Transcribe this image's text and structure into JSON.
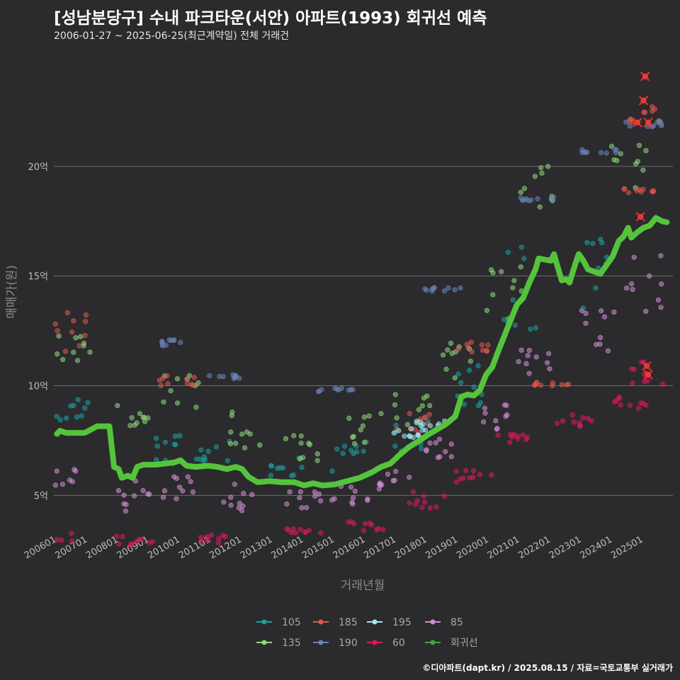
{
  "title": "[성남분당구] 수내 파크타운(서안) 아파트(1993) 회귀선 예측",
  "subtitle": "2006-01-27 ~ 2025-06-25(최근계약일) 전체 거래건",
  "caption": "©디아파트(dapt.kr) / 2025.08.15 / 자료=국토교통부 실거래가",
  "chart_data": {
    "type": "scatter",
    "xlabel": "거래년월",
    "ylabel": "매매가(원)",
    "x_ticks": [
      "200601",
      "200701",
      "200801",
      "200901",
      "201001",
      "201101",
      "201201",
      "201301",
      "201401",
      "201501",
      "201601",
      "201701",
      "201801",
      "201901",
      "202001",
      "202101",
      "202201",
      "202301",
      "202401",
      "202501"
    ],
    "y_ticks": [
      {
        "value": 5,
        "label": "5억"
      },
      {
        "value": 10,
        "label": "10억"
      },
      {
        "value": 15,
        "label": "15억"
      },
      {
        "value": 20,
        "label": "20억"
      }
    ],
    "x_range": [
      2005.9,
      2025.95
    ],
    "y_range": [
      3.3,
      25.0
    ],
    "grid": "horizontal",
    "legend_position": "bottom",
    "legend": [
      {
        "label": "105",
        "color": "#1aa0a0"
      },
      {
        "label": "185",
        "color": "#e2584a"
      },
      {
        "label": "195",
        "color": "#a8e8f4"
      },
      {
        "label": "85",
        "color": "#d48ed6"
      },
      {
        "label": "135",
        "color": "#8fd87a"
      },
      {
        "label": "190",
        "color": "#6a84b8"
      },
      {
        "label": "60",
        "color": "#e0185e"
      },
      {
        "label": "회귀선",
        "color": "#3aa83a"
      }
    ],
    "regression": {
      "name": "회귀선",
      "color": "#55c43c",
      "points": [
        [
          2006.0,
          7.8
        ],
        [
          2006.1,
          7.95
        ],
        [
          2006.3,
          7.85
        ],
        [
          2006.6,
          7.85
        ],
        [
          2006.9,
          7.85
        ],
        [
          2007.1,
          8.0
        ],
        [
          2007.3,
          8.15
        ],
        [
          2007.7,
          8.15
        ],
        [
          2007.85,
          6.3
        ],
        [
          2008.0,
          6.2
        ],
        [
          2008.1,
          5.8
        ],
        [
          2008.3,
          5.9
        ],
        [
          2008.45,
          5.8
        ],
        [
          2008.6,
          6.3
        ],
        [
          2008.8,
          6.4
        ],
        [
          2009.2,
          6.4
        ],
        [
          2009.5,
          6.45
        ],
        [
          2009.8,
          6.5
        ],
        [
          2010.0,
          6.6
        ],
        [
          2010.2,
          6.35
        ],
        [
          2010.5,
          6.3
        ],
        [
          2010.9,
          6.35
        ],
        [
          2011.2,
          6.3
        ],
        [
          2011.5,
          6.2
        ],
        [
          2011.8,
          6.3
        ],
        [
          2012.0,
          6.2
        ],
        [
          2012.2,
          5.85
        ],
        [
          2012.5,
          5.6
        ],
        [
          2012.9,
          5.65
        ],
        [
          2013.3,
          5.6
        ],
        [
          2013.7,
          5.6
        ],
        [
          2014.0,
          5.45
        ],
        [
          2014.3,
          5.55
        ],
        [
          2014.6,
          5.45
        ],
        [
          2015.0,
          5.5
        ],
        [
          2015.4,
          5.65
        ],
        [
          2015.8,
          5.8
        ],
        [
          2016.2,
          6.05
        ],
        [
          2016.5,
          6.3
        ],
        [
          2016.8,
          6.45
        ],
        [
          2017.1,
          6.85
        ],
        [
          2017.4,
          7.2
        ],
        [
          2017.8,
          7.55
        ],
        [
          2018.0,
          7.75
        ],
        [
          2018.3,
          8.0
        ],
        [
          2018.6,
          8.25
        ],
        [
          2018.9,
          8.6
        ],
        [
          2019.1,
          9.5
        ],
        [
          2019.3,
          9.6
        ],
        [
          2019.5,
          9.55
        ],
        [
          2019.7,
          9.8
        ],
        [
          2019.9,
          10.5
        ],
        [
          2020.1,
          10.85
        ],
        [
          2020.3,
          11.6
        ],
        [
          2020.5,
          12.3
        ],
        [
          2020.7,
          13.0
        ],
        [
          2020.9,
          13.7
        ],
        [
          2021.1,
          14.0
        ],
        [
          2021.3,
          14.7
        ],
        [
          2021.5,
          15.3
        ],
        [
          2021.6,
          15.8
        ],
        [
          2021.8,
          15.75
        ],
        [
          2022.0,
          15.7
        ],
        [
          2022.1,
          16.0
        ],
        [
          2022.2,
          15.5
        ],
        [
          2022.35,
          14.8
        ],
        [
          2022.5,
          14.85
        ],
        [
          2022.6,
          14.7
        ],
        [
          2022.8,
          15.6
        ],
        [
          2022.9,
          16.0
        ],
        [
          2023.05,
          15.7
        ],
        [
          2023.2,
          15.3
        ],
        [
          2023.4,
          15.2
        ],
        [
          2023.6,
          15.1
        ],
        [
          2023.8,
          15.5
        ],
        [
          2024.0,
          15.9
        ],
        [
          2024.2,
          16.6
        ],
        [
          2024.35,
          16.8
        ],
        [
          2024.5,
          17.2
        ],
        [
          2024.6,
          16.75
        ],
        [
          2024.8,
          17.0
        ],
        [
          2025.0,
          17.2
        ],
        [
          2025.2,
          17.3
        ],
        [
          2025.4,
          17.65
        ],
        [
          2025.6,
          17.5
        ],
        [
          2025.75,
          17.45
        ]
      ]
    },
    "outliers": [
      {
        "x": 2025.05,
        "y": 24.1
      },
      {
        "x": 2024.8,
        "y": 22.0
      },
      {
        "x": 2025.15,
        "y": 22.0
      },
      {
        "x": 2025.0,
        "y": 23.0
      },
      {
        "x": 2024.9,
        "y": 17.7
      },
      {
        "x": 2025.1,
        "y": 10.9
      },
      {
        "x": 2025.15,
        "y": 10.5
      }
    ],
    "series": [
      {
        "name": "60",
        "color": "#e0185e",
        "bands": [
          [
            2006.0,
            2.85,
            3.3
          ],
          [
            2008.5,
            2.7,
            3.2
          ],
          [
            2011.0,
            2.8,
            3.2
          ],
          [
            2014.0,
            3.2,
            3.5
          ],
          [
            2016.0,
            3.4,
            3.8
          ],
          [
            2018.0,
            4.4,
            5.2
          ],
          [
            2019.5,
            5.6,
            6.2
          ],
          [
            2020.8,
            7.4,
            7.8
          ],
          [
            2022.8,
            8.1,
            8.7
          ],
          [
            2024.5,
            8.9,
            9.5
          ],
          [
            2025.2,
            10.0,
            11.1
          ]
        ]
      },
      {
        "name": "85",
        "color": "#d48ed6",
        "bands": [
          [
            2006.2,
            5.3,
            6.2
          ],
          [
            2008.5,
            4.1,
            5.8
          ],
          [
            2010.0,
            4.8,
            6.0
          ],
          [
            2012.0,
            4.3,
            5.6
          ],
          [
            2014.0,
            4.4,
            5.2
          ],
          [
            2015.5,
            4.6,
            5.5
          ],
          [
            2017.0,
            5.2,
            6.2
          ],
          [
            2018.5,
            6.5,
            7.8
          ],
          [
            2020.0,
            8.0,
            9.5
          ],
          [
            2021.5,
            10.5,
            12.0
          ],
          [
            2023.5,
            11.5,
            13.5
          ],
          [
            2025.0,
            13.2,
            16.0
          ]
        ]
      },
      {
        "name": "105",
        "color": "#1aa0a0",
        "bands": [
          [
            2006.5,
            8.3,
            9.4
          ],
          [
            2009.5,
            6.2,
            7.8
          ],
          [
            2011.0,
            6.5,
            7.8
          ],
          [
            2013.5,
            5.8,
            6.8
          ],
          [
            2015.5,
            6.0,
            7.5
          ],
          [
            2017.5,
            7.0,
            8.5
          ],
          [
            2019.5,
            9.0,
            11.0
          ],
          [
            2021.0,
            12.5,
            16.5
          ],
          [
            2023.5,
            13.0,
            17.0
          ]
        ]
      },
      {
        "name": "135",
        "color": "#8fd87a",
        "bands": [
          [
            2006.5,
            11.0,
            12.8
          ],
          [
            2008.5,
            8.0,
            9.5
          ],
          [
            2010.0,
            8.8,
            10.5
          ],
          [
            2012.0,
            7.0,
            8.8
          ],
          [
            2014.0,
            6.5,
            7.8
          ],
          [
            2016.0,
            7.2,
            8.8
          ],
          [
            2017.5,
            8.2,
            9.8
          ],
          [
            2019.0,
            10.0,
            12.0
          ],
          [
            2020.5,
            13.0,
            15.5
          ],
          [
            2021.5,
            17.8,
            20.0
          ],
          [
            2024.5,
            18.5,
            21.0
          ]
        ]
      },
      {
        "name": "185",
        "color": "#e2584a",
        "bands": [
          [
            2006.5,
            11.5,
            13.4
          ],
          [
            2009.9,
            10.0,
            10.6
          ],
          [
            2017.5,
            7.8,
            8.9
          ],
          [
            2019.5,
            11.5,
            12.0
          ],
          [
            2022.0,
            10.0,
            10.2
          ],
          [
            2024.8,
            18.8,
            19.0
          ],
          [
            2025.1,
            22.0,
            23.0
          ]
        ]
      },
      {
        "name": "190",
        "color": "#6a84b8",
        "bands": [
          [
            2009.5,
            11.8,
            12.1
          ],
          [
            2011.5,
            10.3,
            10.5
          ],
          [
            2015.0,
            9.7,
            9.9
          ],
          [
            2018.5,
            14.3,
            14.5
          ],
          [
            2021.5,
            18.4,
            18.6
          ],
          [
            2023.6,
            20.6,
            20.8
          ],
          [
            2025.0,
            21.8,
            22.1
          ]
        ]
      },
      {
        "name": "195",
        "color": "#a8e8f4",
        "bands": [
          [
            2017.5,
            7.6,
            8.0
          ],
          [
            2018.0,
            7.8,
            8.4
          ]
        ]
      }
    ]
  }
}
